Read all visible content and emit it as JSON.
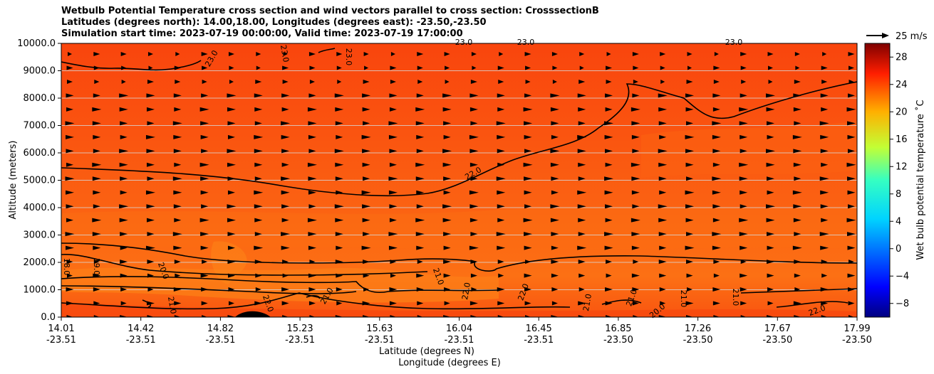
{
  "chart_data": {
    "type": "heatmap",
    "title_lines": [
      "Wetbulb Potential Temperature cross section and wind vectors parallel to cross section: CrosssectionB",
      "Latitudes (degrees north): 14.00,18.00, Longitudes (degrees east): -23.50,-23.50",
      "Simulation start time: 2023-07-19 00:00:00, Valid time: 2023-07-19 17:00:00"
    ],
    "ylabel": "Altitude (meters)",
    "xlabel": "Latitude (degrees N)",
    "xlabel2": "Longitude (degrees E)",
    "ylim": [
      0,
      10000
    ],
    "yticks": [
      "0.0",
      "1000.0",
      "2000.0",
      "3000.0",
      "4000.0",
      "5000.0",
      "6000.0",
      "7000.0",
      "8000.0",
      "9000.0",
      "10000.0"
    ],
    "xticks_lat": [
      "14.01",
      "14.42",
      "14.82",
      "15.23",
      "15.63",
      "16.04",
      "16.45",
      "16.85",
      "17.26",
      "17.67",
      "17.99"
    ],
    "xticks_lon": [
      "-23.51",
      "-23.51",
      "-23.51",
      "-23.51",
      "-23.51",
      "-23.51",
      "-23.51",
      "-23.50",
      "-23.50",
      "-23.50",
      "-23.50"
    ],
    "grid": true,
    "colorbar": {
      "label": "Wet bulb potential temperature ˚C",
      "range": [
        -10,
        30
      ],
      "ticks": [
        "−8",
        "−4",
        "0",
        "4",
        "8",
        "12",
        "16",
        "20",
        "24",
        "28"
      ],
      "colormap": "jet"
    },
    "quiver_key": "25 m/s",
    "contour_labels": [
      "23.0",
      "23.0",
      "23.0",
      "23.0",
      "23.0",
      "23.0",
      "22.0",
      "18.0",
      "19.0",
      "20.0",
      "21.0",
      "21.0",
      "22.0",
      "21.0",
      "22.0",
      "22.0",
      "21.0",
      "21.0",
      "20.0",
      "21.0",
      "21.0",
      "22.0"
    ],
    "field_summary": "Mostly 21–24 ˚C across the section; warmest (~24) aloft above 5000 m, coolest (~18–21) in the lowest 2000 m near 14.0N"
  }
}
